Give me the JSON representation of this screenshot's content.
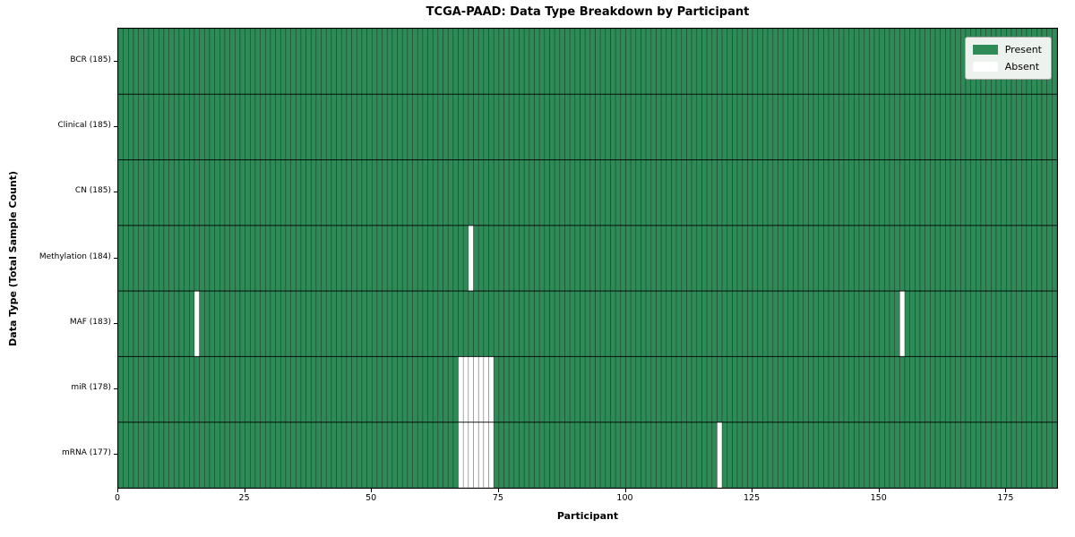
{
  "chart_data": {
    "type": "heatmap",
    "title": "TCGA-PAAD: Data Type Breakdown by Participant",
    "xlabel": "Participant",
    "ylabel": "Data Type (Total Sample Count)",
    "n_participants": 185,
    "xlim": [
      0,
      185
    ],
    "x_ticks": [
      0,
      25,
      50,
      75,
      100,
      125,
      150,
      175
    ],
    "grid": "cell-edges-only",
    "legend_position": "upper right",
    "colors": {
      "present": "#2e8b57",
      "absent": "#ffffff",
      "cell_edge": "#000000",
      "row_divider": "#000000",
      "legend_bg": "#eef2ee",
      "legend_border": "#aaaaaa"
    },
    "legend": [
      {
        "label": "Present",
        "color": "#2e8b57"
      },
      {
        "label": "Absent",
        "color": "#ffffff"
      }
    ],
    "rows": [
      {
        "data_type": "BCR",
        "total": 185,
        "tick_label": "BCR (185)",
        "absent_participants": []
      },
      {
        "data_type": "Clinical",
        "total": 185,
        "tick_label": "Clinical (185)",
        "absent_participants": []
      },
      {
        "data_type": "CN",
        "total": 185,
        "tick_label": "CN (185)",
        "absent_participants": []
      },
      {
        "data_type": "Methylation",
        "total": 184,
        "tick_label": "Methylation (184)",
        "absent_participants": [
          69
        ]
      },
      {
        "data_type": "MAF",
        "total": 183,
        "tick_label": "MAF (183)",
        "absent_participants": [
          15,
          154
        ]
      },
      {
        "data_type": "miR",
        "total": 178,
        "tick_label": "miR (178)",
        "absent_participants": [
          67,
          68,
          69,
          70,
          71,
          72,
          73
        ]
      },
      {
        "data_type": "mRNA",
        "total": 177,
        "tick_label": "mRNA (177)",
        "absent_participants": [
          67,
          68,
          69,
          70,
          71,
          72,
          73,
          118
        ]
      }
    ]
  }
}
